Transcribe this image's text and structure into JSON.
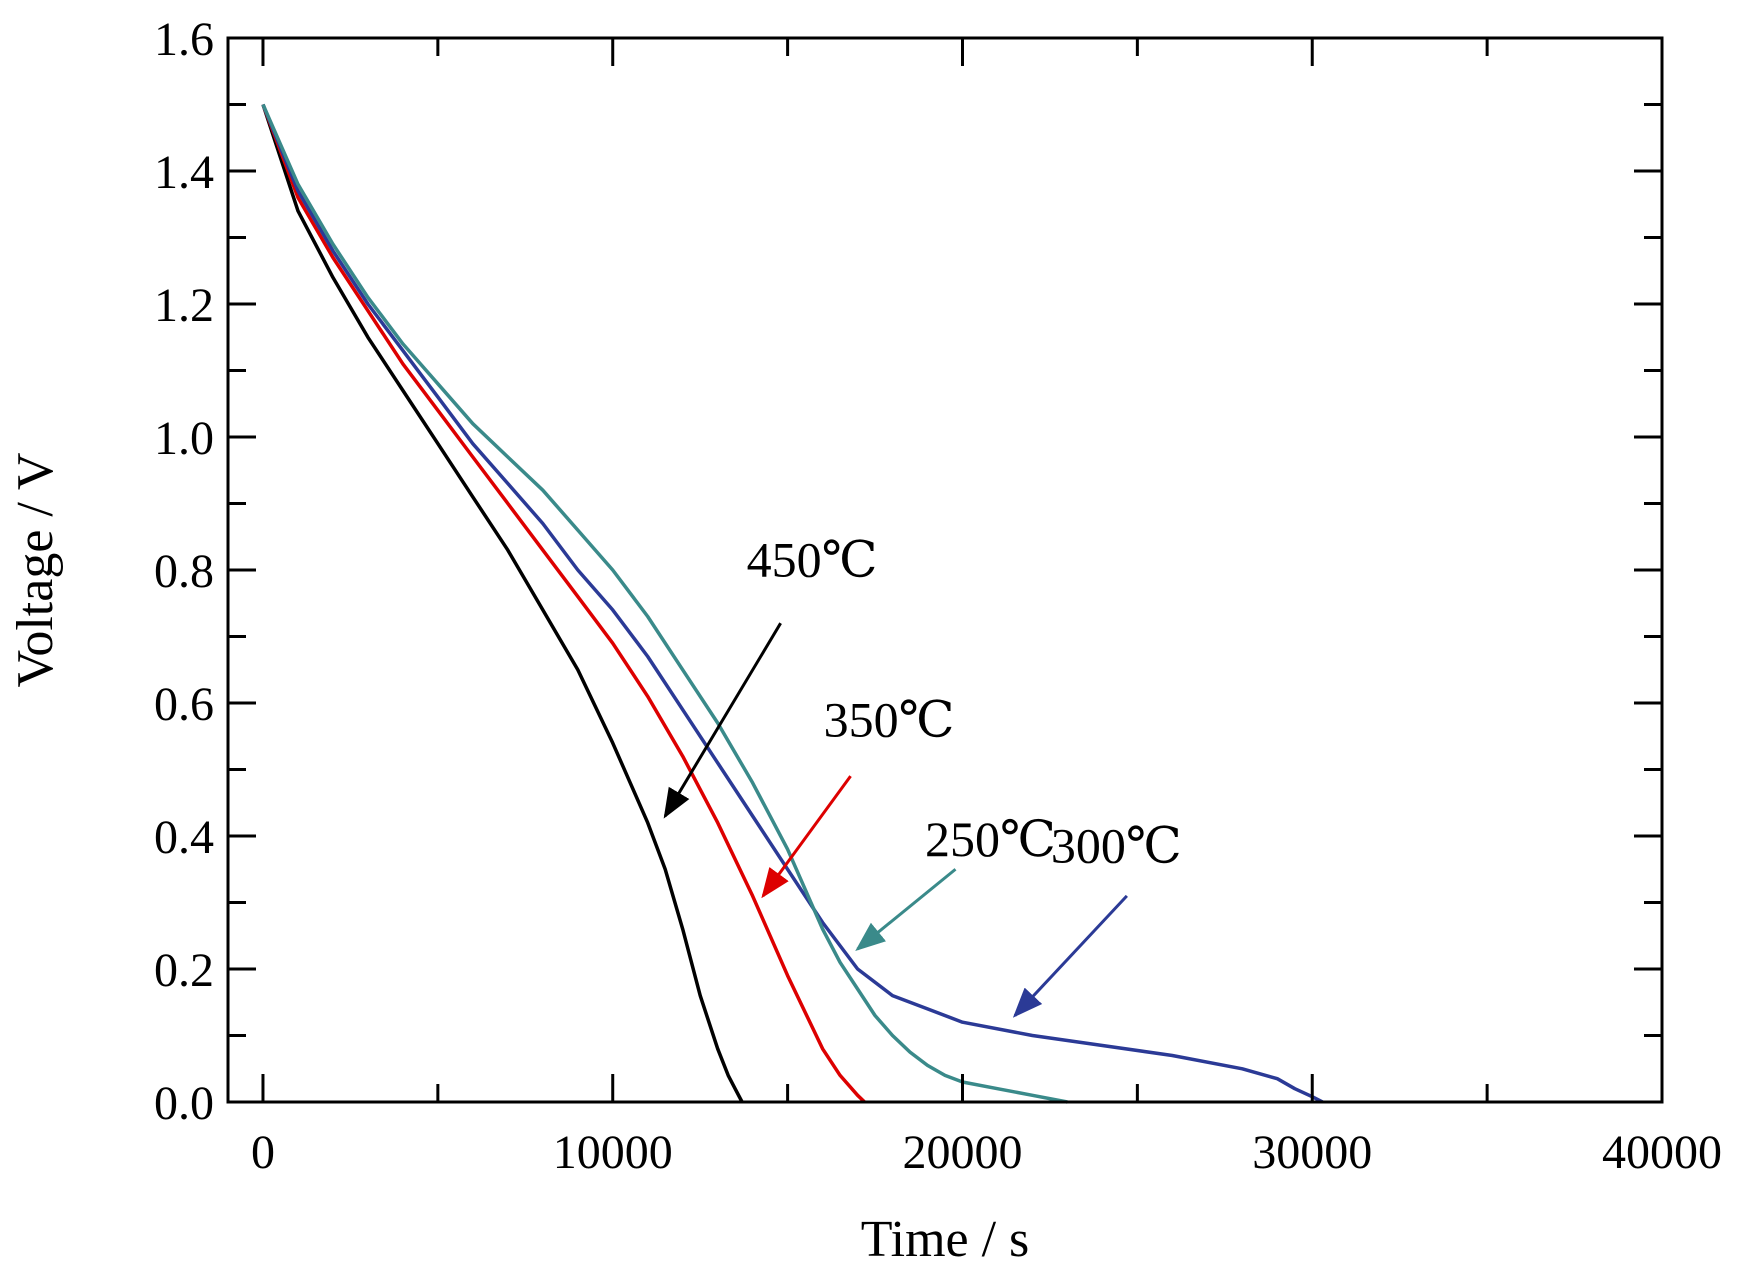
{
  "chart_data": {
    "type": "line",
    "title": "",
    "xlabel": "Time / s",
    "ylabel": "Voltage / V",
    "xlim": [
      -1000,
      40000
    ],
    "ylim": [
      0,
      1.6
    ],
    "xticks": [
      0,
      10000,
      20000,
      30000,
      40000
    ],
    "xtick_labels": [
      "0",
      "10000",
      "20000",
      "30000",
      "40000"
    ],
    "yticks": [
      0,
      0.2,
      0.4,
      0.6,
      0.8,
      1.0,
      1.2,
      1.4,
      1.6
    ],
    "ytick_labels": [
      "0.0",
      "0.2",
      "0.4",
      "0.6",
      "0.8",
      "1.0",
      "1.2",
      "1.4",
      "1.6"
    ],
    "grid": false,
    "legend": "none",
    "series": [
      {
        "color": "#000000",
        "x": [
          0,
          1000,
          2000,
          3000,
          4000,
          5000,
          6000,
          7000,
          8000,
          9000,
          10000,
          10500,
          11000,
          11500,
          12000,
          12500,
          13000,
          13300,
          13500,
          13700
        ],
        "y": [
          1.5,
          1.34,
          1.24,
          1.15,
          1.07,
          0.99,
          0.91,
          0.83,
          0.74,
          0.65,
          0.54,
          0.48,
          0.42,
          0.35,
          0.26,
          0.16,
          0.08,
          0.04,
          0.02,
          0.0
        ]
      },
      {
        "color": "#dd0000",
        "x": [
          0,
          1000,
          2000,
          3000,
          4000,
          5000,
          6000,
          7000,
          8000,
          9000,
          10000,
          11000,
          12000,
          13000,
          14000,
          15000,
          16000,
          16500,
          17000,
          17200
        ],
        "y": [
          1.5,
          1.36,
          1.27,
          1.19,
          1.11,
          1.04,
          0.97,
          0.9,
          0.83,
          0.76,
          0.69,
          0.61,
          0.52,
          0.42,
          0.31,
          0.19,
          0.08,
          0.04,
          0.01,
          0.0
        ]
      },
      {
        "color": "#2b3a96",
        "x": [
          0,
          1000,
          2000,
          3000,
          4000,
          5000,
          6000,
          7000,
          8000,
          9000,
          10000,
          11000,
          12000,
          13000,
          14000,
          15000,
          16000,
          17000,
          18000,
          19000,
          20000,
          22000,
          24000,
          26000,
          28000,
          29000,
          29500,
          30000,
          30300
        ],
        "y": [
          1.5,
          1.37,
          1.28,
          1.2,
          1.13,
          1.06,
          0.99,
          0.93,
          0.87,
          0.8,
          0.74,
          0.67,
          0.59,
          0.51,
          0.43,
          0.35,
          0.27,
          0.2,
          0.16,
          0.14,
          0.12,
          0.1,
          0.085,
          0.07,
          0.05,
          0.035,
          0.02,
          0.008,
          0.0
        ]
      },
      {
        "color": "#3a8a8a",
        "x": [
          0,
          1000,
          2000,
          3000,
          4000,
          5000,
          6000,
          7000,
          8000,
          9000,
          10000,
          11000,
          12000,
          13000,
          14000,
          15000,
          15500,
          16000,
          16500,
          17000,
          17500,
          18000,
          18500,
          19000,
          19500,
          20000,
          21000,
          22000,
          23000
        ],
        "y": [
          1.5,
          1.38,
          1.29,
          1.21,
          1.14,
          1.08,
          1.02,
          0.97,
          0.92,
          0.86,
          0.8,
          0.73,
          0.65,
          0.57,
          0.48,
          0.38,
          0.32,
          0.26,
          0.21,
          0.17,
          0.13,
          0.1,
          0.075,
          0.055,
          0.04,
          0.03,
          0.02,
          0.01,
          0.0
        ]
      }
    ],
    "annotations": [
      {
        "text": "450℃",
        "text_x": 15700,
        "text_y": 0.79,
        "arrow_from": [
          14800,
          0.72
        ],
        "arrow_to": [
          11500,
          0.43
        ],
        "color": "#000000"
      },
      {
        "text": "350℃",
        "text_x": 17900,
        "text_y": 0.55,
        "arrow_from": [
          16800,
          0.49
        ],
        "arrow_to": [
          14300,
          0.31
        ],
        "color": "#dd0000"
      },
      {
        "text": "250℃",
        "text_x": 20800,
        "text_y": 0.37,
        "arrow_from": [
          19800,
          0.35
        ],
        "arrow_to": [
          17000,
          0.23
        ],
        "color": "#3a8a8a"
      },
      {
        "text": "300℃",
        "text_x": 24400,
        "text_y": 0.36,
        "arrow_from": [
          24700,
          0.31
        ],
        "arrow_to": [
          21500,
          0.13
        ],
        "color": "#2b3a96"
      }
    ]
  }
}
